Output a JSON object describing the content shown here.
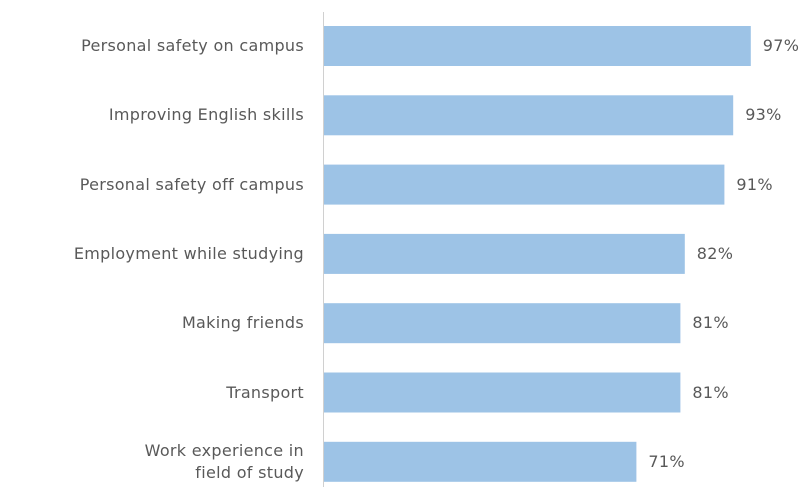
{
  "chart_data": {
    "type": "bar",
    "orientation": "horizontal",
    "categories": [
      "Personal safety on campus",
      "Improving English skills",
      "Personal safety off campus",
      "Employment while studying",
      "Making friends",
      "Transport",
      "Work experience in\nfield of study"
    ],
    "values": [
      97,
      93,
      91,
      82,
      81,
      81,
      71
    ],
    "value_labels": [
      "97%",
      "93%",
      "91%",
      "82%",
      "81%",
      "81%",
      "71%"
    ],
    "color": "#9dc3e6",
    "xlim": [
      0,
      100
    ]
  }
}
